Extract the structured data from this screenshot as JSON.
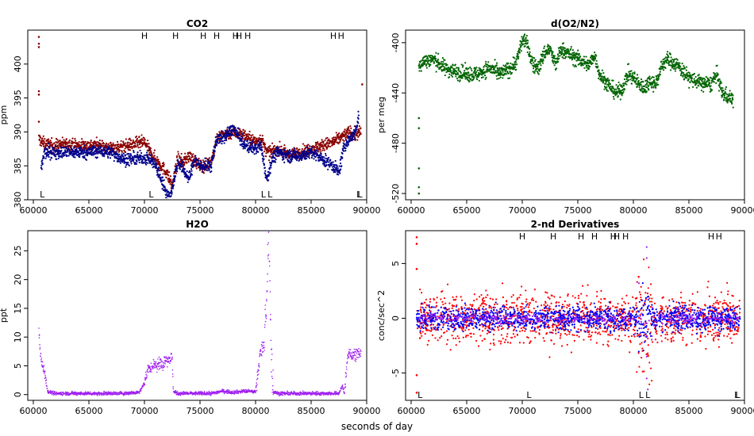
{
  "figure": {
    "xlabel": "seconds of day"
  },
  "chart_data": [
    {
      "id": "co2",
      "type": "scatter",
      "title": "CO2",
      "ylabel": "ppm",
      "xlim": [
        59500,
        90000
      ],
      "ylim": [
        380,
        405
      ],
      "xticks": [
        60000,
        65000,
        70000,
        75000,
        80000,
        85000,
        90000
      ],
      "yticks": [
        380,
        385,
        390,
        395,
        400
      ],
      "marker_label_H": "H",
      "marker_label_L": "L",
      "H_markers": [
        70000,
        72800,
        75300,
        76500,
        78200,
        78500,
        79300,
        87000,
        87700
      ],
      "L_markers": [
        60800,
        70600,
        80700,
        81300,
        89300,
        89400
      ],
      "series": [
        {
          "name": "red",
          "color": "#8b0000",
          "points": [
            [
              60500,
              389
            ],
            [
              61000,
              388.2
            ],
            [
              62000,
              388
            ],
            [
              63000,
              388.2
            ],
            [
              64000,
              388
            ],
            [
              65000,
              388
            ],
            [
              66000,
              388
            ],
            [
              67000,
              387.6
            ],
            [
              68000,
              387.8
            ],
            [
              69000,
              388.2
            ],
            [
              70000,
              388.5
            ],
            [
              70500,
              387
            ],
            [
              71000,
              386
            ],
            [
              72000,
              384
            ],
            [
              72500,
              382
            ],
            [
              73000,
              386
            ],
            [
              73500,
              385.5
            ],
            [
              74000,
              386.5
            ],
            [
              75000,
              385
            ],
            [
              75500,
              385
            ],
            [
              76000,
              385.5
            ],
            [
              76500,
              389
            ],
            [
              77000,
              389.5
            ],
            [
              78000,
              390
            ],
            [
              79000,
              389.5
            ],
            [
              80000,
              388.5
            ],
            [
              80500,
              389
            ],
            [
              81000,
              387
            ],
            [
              81500,
              387
            ],
            [
              82000,
              387.5
            ],
            [
              83000,
              386.5
            ],
            [
              84000,
              387
            ],
            [
              85000,
              387.5
            ],
            [
              86000,
              388
            ],
            [
              87000,
              388.5
            ],
            [
              88000,
              389.5
            ],
            [
              88500,
              390
            ],
            [
              89000,
              389.5
            ],
            [
              89500,
              390
            ]
          ],
          "outliers": [
            [
              60500,
              404
            ],
            [
              60500,
              403
            ],
            [
              60500,
              402.5
            ],
            [
              60500,
              396
            ],
            [
              60500,
              395.5
            ],
            [
              60500,
              391.5
            ],
            [
              89600,
              397
            ]
          ]
        },
        {
          "name": "blue",
          "color": "#00008b",
          "points": [
            [
              60700,
              384.5
            ],
            [
              61000,
              387
            ],
            [
              62000,
              387
            ],
            [
              63000,
              387
            ],
            [
              64000,
              387
            ],
            [
              65000,
              387
            ],
            [
              66000,
              387.2
            ],
            [
              67000,
              387
            ],
            [
              68000,
              386
            ],
            [
              69000,
              386
            ],
            [
              70000,
              386.2
            ],
            [
              70500,
              386
            ],
            [
              71000,
              385
            ],
            [
              71500,
              383
            ],
            [
              72000,
              381
            ],
            [
              72300,
              380.3
            ],
            [
              73000,
              385.5
            ],
            [
              73500,
              384.5
            ],
            [
              74000,
              383
            ],
            [
              74500,
              386
            ],
            [
              75000,
              385
            ],
            [
              76000,
              385
            ],
            [
              76500,
              389
            ],
            [
              77000,
              389
            ],
            [
              78000,
              390.5
            ],
            [
              79000,
              388
            ],
            [
              80000,
              387.5
            ],
            [
              80500,
              388
            ],
            [
              81000,
              383
            ],
            [
              81500,
              386
            ],
            [
              82000,
              387
            ],
            [
              83000,
              386.5
            ],
            [
              84000,
              386.5
            ],
            [
              85000,
              387
            ],
            [
              86000,
              386
            ],
            [
              86500,
              385.5
            ],
            [
              87000,
              385
            ],
            [
              87500,
              384
            ],
            [
              88000,
              388
            ],
            [
              88500,
              389
            ],
            [
              89000,
              390
            ],
            [
              89300,
              392.5
            ]
          ]
        }
      ]
    },
    {
      "id": "o2n2",
      "type": "scatter",
      "title": "d(O2/N2)",
      "ylabel": "per meg",
      "xlim": [
        59500,
        90000
      ],
      "ylim": [
        -525,
        -390
      ],
      "xticks": [
        60000,
        65000,
        70000,
        75000,
        80000,
        85000,
        90000
      ],
      "yticks": [
        -520,
        -480,
        -440,
        -400
      ],
      "series": [
        {
          "name": "green",
          "color": "#006400",
          "points": [
            [
              60700,
              -420
            ],
            [
              61000,
              -415
            ],
            [
              62000,
              -413
            ],
            [
              63000,
              -420
            ],
            [
              64000,
              -423
            ],
            [
              65000,
              -425
            ],
            [
              66000,
              -425
            ],
            [
              67000,
              -420
            ],
            [
              68000,
              -425
            ],
            [
              69000,
              -420
            ],
            [
              69500,
              -415
            ],
            [
              70000,
              -398
            ],
            [
              70300,
              -398
            ],
            [
              71000,
              -418
            ],
            [
              71500,
              -420
            ],
            [
              72000,
              -408
            ],
            [
              72500,
              -405
            ],
            [
              73000,
              -418
            ],
            [
              73500,
              -405
            ],
            [
              74000,
              -408
            ],
            [
              75000,
              -413
            ],
            [
              76000,
              -418
            ],
            [
              76500,
              -410
            ],
            [
              77000,
              -426
            ],
            [
              78000,
              -436
            ],
            [
              78500,
              -440
            ],
            [
              79000,
              -437
            ],
            [
              79500,
              -425
            ],
            [
              80000,
              -428
            ],
            [
              80500,
              -433
            ],
            [
              81000,
              -436
            ],
            [
              81500,
              -430
            ],
            [
              82000,
              -433
            ],
            [
              82500,
              -420
            ],
            [
              83000,
              -413
            ],
            [
              84000,
              -418
            ],
            [
              85000,
              -428
            ],
            [
              86000,
              -432
            ],
            [
              87000,
              -433
            ],
            [
              87500,
              -425
            ],
            [
              88000,
              -440
            ],
            [
              88500,
              -443
            ],
            [
              89000,
              -445
            ]
          ],
          "outliers": [
            [
              60700,
              -460
            ],
            [
              60700,
              -468
            ],
            [
              60700,
              -500
            ],
            [
              60700,
              -515
            ],
            [
              60700,
              -520
            ]
          ]
        }
      ]
    },
    {
      "id": "h2o",
      "type": "scatter",
      "title": "H2O",
      "ylabel": "ppt",
      "xlim": [
        59500,
        90000
      ],
      "ylim": [
        -1,
        28.5
      ],
      "xticks": [
        60000,
        65000,
        70000,
        75000,
        80000,
        85000,
        90000
      ],
      "yticks": [
        0,
        5,
        10,
        15,
        20,
        25
      ],
      "series": [
        {
          "name": "purple",
          "color": "#a020f0",
          "points": [
            [
              60500,
              11
            ],
            [
              60700,
              6
            ],
            [
              61000,
              4
            ],
            [
              61300,
              0.5
            ],
            [
              62000,
              0.2
            ],
            [
              65000,
              0.2
            ],
            [
              68000,
              0.2
            ],
            [
              69500,
              0.4
            ],
            [
              70000,
              2
            ],
            [
              70300,
              4.5
            ],
            [
              71000,
              5
            ],
            [
              71500,
              5.5
            ],
            [
              72000,
              6
            ],
            [
              72500,
              6.5
            ],
            [
              72600,
              0.5
            ],
            [
              73000,
              0.2
            ],
            [
              75000,
              0.2
            ],
            [
              76000,
              0.2
            ],
            [
              77000,
              0.6
            ],
            [
              78000,
              0.4
            ],
            [
              79000,
              0.6
            ],
            [
              80000,
              0.5
            ],
            [
              80400,
              7
            ],
            [
              80800,
              9
            ],
            [
              81000,
              18
            ],
            [
              81200,
              28
            ],
            [
              81400,
              8
            ],
            [
              81600,
              0.5
            ],
            [
              82000,
              0.2
            ],
            [
              85000,
              0.2
            ],
            [
              87500,
              0.2
            ],
            [
              87800,
              1.5
            ],
            [
              88000,
              0.2
            ],
            [
              88300,
              7
            ],
            [
              89000,
              7
            ],
            [
              89500,
              7.5
            ]
          ]
        }
      ]
    },
    {
      "id": "deriv",
      "type": "scatter",
      "title": "2-nd Derivatives",
      "ylabel": "conc/sec^2",
      "xlim": [
        59500,
        90000
      ],
      "ylim": [
        -7.5,
        8
      ],
      "xticks": [
        60000,
        65000,
        70000,
        75000,
        80000,
        85000,
        90000
      ],
      "yticks": [
        -5,
        0,
        5
      ],
      "marker_label_H": "H",
      "marker_label_L": "L",
      "H_markers": [
        70000,
        72800,
        75300,
        76500,
        78200,
        78500,
        79300,
        87000,
        87700
      ],
      "L_markers": [
        60800,
        70600,
        80700,
        81300,
        89300,
        89400
      ],
      "series": [
        {
          "name": "red",
          "color": "#ff0000",
          "spread": 2.5
        },
        {
          "name": "blue",
          "color": "#0000ff",
          "spread": 1.2
        },
        {
          "name": "purple",
          "color": "#a020f0",
          "spread": 0.8
        }
      ]
    }
  ]
}
